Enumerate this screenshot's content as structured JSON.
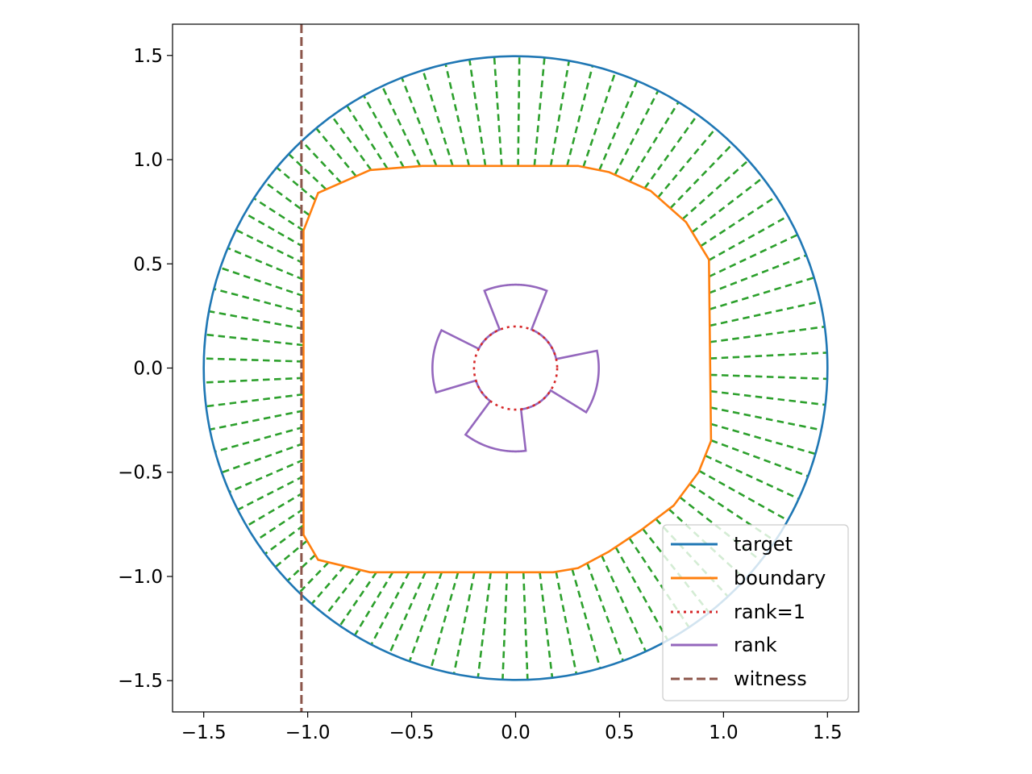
{
  "chart_data": {
    "type": "line",
    "title": "",
    "xlabel": "",
    "ylabel": "",
    "xlim": [
      -1.65,
      1.65
    ],
    "ylim": [
      -1.65,
      1.65
    ],
    "aspect": "equal",
    "grid": false,
    "x_ticks": [
      -1.5,
      -1.0,
      -0.5,
      0.0,
      0.5,
      1.0,
      1.5
    ],
    "x_tick_labels": [
      "−1.5",
      "−1.0",
      "−0.5",
      "0.0",
      "0.5",
      "1.0",
      "1.5"
    ],
    "y_ticks": [
      -1.5,
      -1.0,
      -0.5,
      0.0,
      0.5,
      1.0,
      1.5
    ],
    "y_tick_labels": [
      "−1.5",
      "−1.0",
      "−0.5",
      "0.0",
      "0.5",
      "1.0",
      "1.5"
    ],
    "legend_position": "lower-right",
    "series": [
      {
        "name": "target",
        "color": "#1f77b4",
        "style": "solid",
        "shape": "circle",
        "center": [
          0,
          0
        ],
        "radius": 1.5
      },
      {
        "name": "boundary",
        "color": "#ff7f0e",
        "style": "solid",
        "shape": "rounded-rectangle",
        "points": [
          [
            -1.02,
            0.66
          ],
          [
            -0.95,
            0.84
          ],
          [
            -0.7,
            0.95
          ],
          [
            -0.45,
            0.97
          ],
          [
            0.3,
            0.97
          ],
          [
            0.45,
            0.94
          ],
          [
            0.65,
            0.85
          ],
          [
            0.82,
            0.7
          ],
          [
            0.93,
            0.52
          ],
          [
            0.94,
            -0.35
          ],
          [
            0.88,
            -0.5
          ],
          [
            0.76,
            -0.66
          ],
          [
            0.6,
            -0.78
          ],
          [
            0.45,
            -0.88
          ],
          [
            0.3,
            -0.96
          ],
          [
            0.18,
            -0.98
          ],
          [
            -0.7,
            -0.98
          ],
          [
            -0.95,
            -0.92
          ],
          [
            -1.02,
            -0.8
          ]
        ]
      },
      {
        "name": "rank=1",
        "color": "#d62728",
        "style": "dotted",
        "shape": "circle",
        "center": [
          0,
          0
        ],
        "radius": 0.2
      },
      {
        "name": "rank",
        "color": "#9467bd",
        "style": "solid",
        "shape": "four-lobed-rose",
        "inner_radius": 0.2,
        "outer_radius": 0.4,
        "lobes": 4,
        "lobe_half_width_deg": 22,
        "lobe_centers_deg": [
          90,
          175,
          255,
          350
        ]
      },
      {
        "name": "witness",
        "color": "#8c564b",
        "style": "dashed",
        "shape": "vertical-line",
        "x": -1.03
      },
      {
        "name": "",
        "color": "#2ca02c",
        "style": "dashed",
        "shape": "radial-connectors",
        "count": 88,
        "from": "boundary",
        "to": "target"
      }
    ]
  },
  "legend": {
    "entries": [
      {
        "label": "target",
        "color": "#1f77b4",
        "style": "solid"
      },
      {
        "label": "boundary",
        "color": "#ff7f0e",
        "style": "solid"
      },
      {
        "label": "rank=1",
        "color": "#d62728",
        "style": "dotted"
      },
      {
        "label": "rank",
        "color": "#9467bd",
        "style": "solid"
      },
      {
        "label": "witness",
        "color": "#8c564b",
        "style": "dashed"
      }
    ]
  }
}
